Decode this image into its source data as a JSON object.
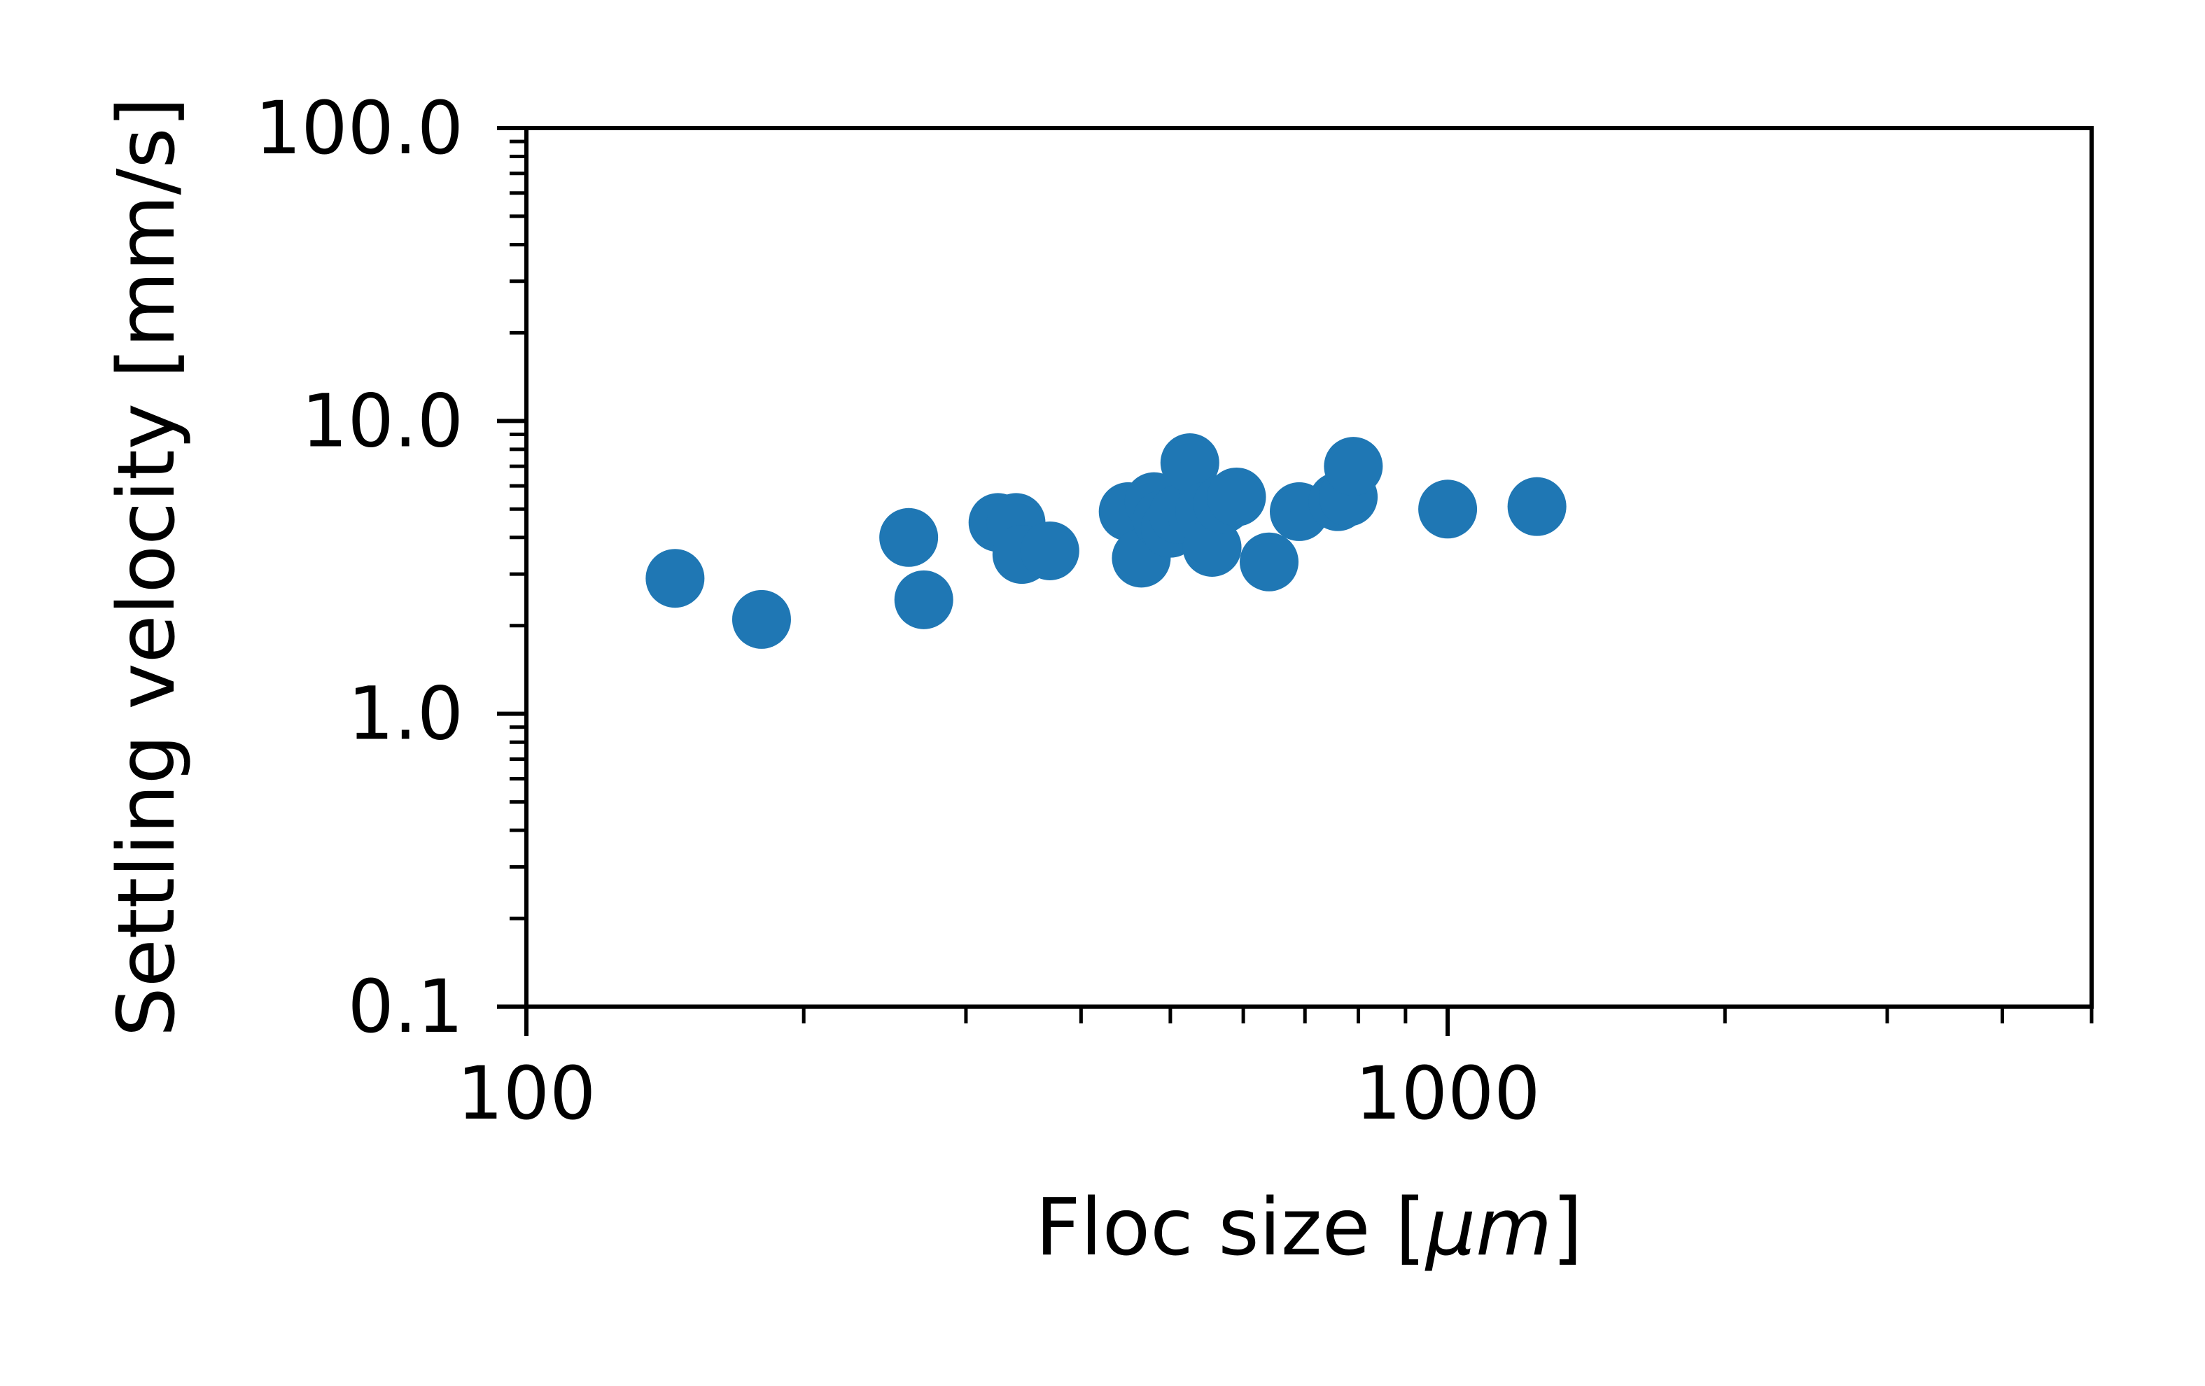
{
  "chart_data": {
    "type": "scatter",
    "title": "",
    "xlabel": "Floc size [",
    "xlabel_mu": "μm",
    "xlabel_close": "]",
    "ylabel": "Settling velocity [mm/s]",
    "xscale": "log",
    "yscale": "log",
    "xlim": [
      100,
      5000
    ],
    "ylim": [
      0.1,
      100
    ],
    "x_ticks": [
      {
        "value": 100,
        "label": "100"
      },
      {
        "value": 1000,
        "label": "1000"
      }
    ],
    "y_ticks": [
      {
        "value": 0.1,
        "label": "0.1"
      },
      {
        "value": 1,
        "label": "1.0"
      },
      {
        "value": 10,
        "label": "10.0"
      },
      {
        "value": 100,
        "label": "100.0"
      }
    ],
    "grid": false,
    "legend": "none",
    "marker_color": "#1f77b4",
    "series": [
      {
        "points": [
          {
            "x": 145,
            "y": 2.9
          },
          {
            "x": 180,
            "y": 2.1
          },
          {
            "x": 260,
            "y": 4.0
          },
          {
            "x": 270,
            "y": 2.45
          },
          {
            "x": 325,
            "y": 4.5
          },
          {
            "x": 340,
            "y": 4.5
          },
          {
            "x": 345,
            "y": 3.5
          },
          {
            "x": 370,
            "y": 3.6
          },
          {
            "x": 450,
            "y": 4.9
          },
          {
            "x": 465,
            "y": 3.4
          },
          {
            "x": 480,
            "y": 5.3
          },
          {
            "x": 490,
            "y": 4.6
          },
          {
            "x": 500,
            "y": 4.3
          },
          {
            "x": 510,
            "y": 4.8
          },
          {
            "x": 525,
            "y": 7.2
          },
          {
            "x": 535,
            "y": 4.7
          },
          {
            "x": 545,
            "y": 4.9
          },
          {
            "x": 555,
            "y": 3.7
          },
          {
            "x": 570,
            "y": 5.2
          },
          {
            "x": 590,
            "y": 5.5
          },
          {
            "x": 640,
            "y": 3.3
          },
          {
            "x": 690,
            "y": 4.9
          },
          {
            "x": 760,
            "y": 5.3
          },
          {
            "x": 780,
            "y": 5.5
          },
          {
            "x": 790,
            "y": 7.0
          },
          {
            "x": 1000,
            "y": 5.0
          },
          {
            "x": 1250,
            "y": 5.1
          }
        ]
      }
    ]
  }
}
